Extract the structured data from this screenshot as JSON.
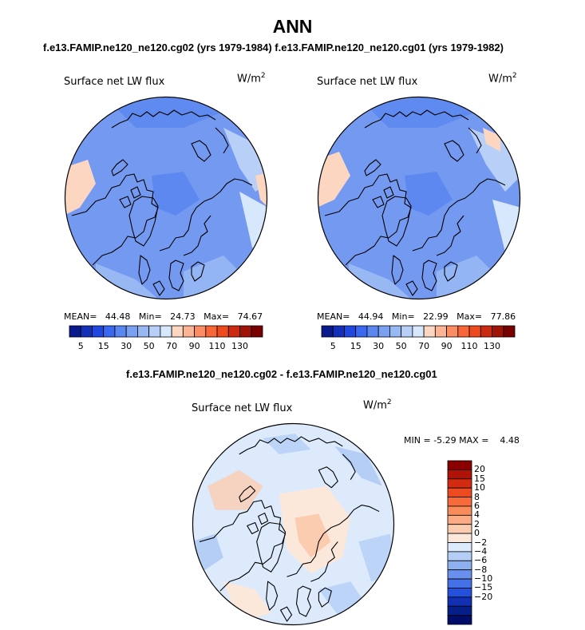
{
  "title": "ANN",
  "case_titles": {
    "top": "f.e13.FAMIP.ne120_ne120.cg02 (yrs 1979-1984)  f.e13.FAMIP.ne120_ne120.cg01 (yrs 1979-1982)",
    "diff": "f.e13.FAMIP.ne120_ne120.cg02 - f.e13.FAMIP.ne120_ne120.cg01"
  },
  "chart_data": [
    {
      "type": "heatmap",
      "projection": "north-polar-stereographic",
      "variable_label": "Surface net LW flux",
      "units_base": "W/m",
      "units_exp": "2",
      "stats": {
        "mean_label": "MEAN=",
        "mean": "44.48",
        "min_label": "Min=",
        "min": "24.73",
        "max_label": "Max=",
        "max": "74.67"
      },
      "colorbar": {
        "orientation": "horizontal",
        "colors": [
          "#0a1a8c",
          "#1530b8",
          "#2048e0",
          "#3a68f0",
          "#5a86f0",
          "#7aa0f2",
          "#98b8f4",
          "#b8d0f8",
          "#d8e8fc",
          "#fcd6c0",
          "#fcb494",
          "#fc8c64",
          "#f8663a",
          "#ee4a1e",
          "#cc2a10",
          "#a01408",
          "#780000"
        ],
        "tick_labels": [
          "5",
          "15",
          "30",
          "50",
          "70",
          "90",
          "110",
          "130"
        ]
      }
    },
    {
      "type": "heatmap",
      "projection": "north-polar-stereographic",
      "variable_label": "Surface net LW flux",
      "units_base": "W/m",
      "units_exp": "2",
      "stats": {
        "mean_label": "MEAN=",
        "mean": "44.94",
        "min_label": "Min=",
        "min": "22.99",
        "max_label": "Max=",
        "max": "77.86"
      },
      "colorbar": {
        "orientation": "horizontal",
        "colors": [
          "#0a1a8c",
          "#1530b8",
          "#2048e0",
          "#3a68f0",
          "#5a86f0",
          "#7aa0f2",
          "#98b8f4",
          "#b8d0f8",
          "#d8e8fc",
          "#fcd6c0",
          "#fcb494",
          "#fc8c64",
          "#f8663a",
          "#ee4a1e",
          "#cc2a10",
          "#a01408",
          "#780000"
        ],
        "tick_labels": [
          "5",
          "15",
          "30",
          "50",
          "70",
          "90",
          "110",
          "130"
        ]
      }
    },
    {
      "type": "heatmap",
      "projection": "north-polar-stereographic",
      "variable_label": "Surface net LW flux",
      "units_base": "W/m",
      "units_exp": "2",
      "stats": {
        "min_label": "MIN =",
        "min": "-5.29",
        "max_label": "MAX =",
        "max": "4.48"
      },
      "colorbar": {
        "orientation": "vertical",
        "colors_top_to_bottom": [
          "#8a0000",
          "#b01208",
          "#d42a10",
          "#ec4a20",
          "#f86a3a",
          "#fa8c5c",
          "#fcac84",
          "#fcccb0",
          "#fce8da",
          "#dceafc",
          "#b4cef6",
          "#8cb0f0",
          "#6890ec",
          "#4470e8",
          "#2450dc",
          "#1230b4",
          "#061e88",
          "#000c6a"
        ],
        "tick_labels_top_to_bottom": [
          "20",
          "15",
          "10",
          "8",
          "6",
          "4",
          "2",
          "0",
          "−2",
          "−4",
          "−6",
          "−8",
          "−10",
          "−15",
          "−20"
        ]
      }
    }
  ]
}
